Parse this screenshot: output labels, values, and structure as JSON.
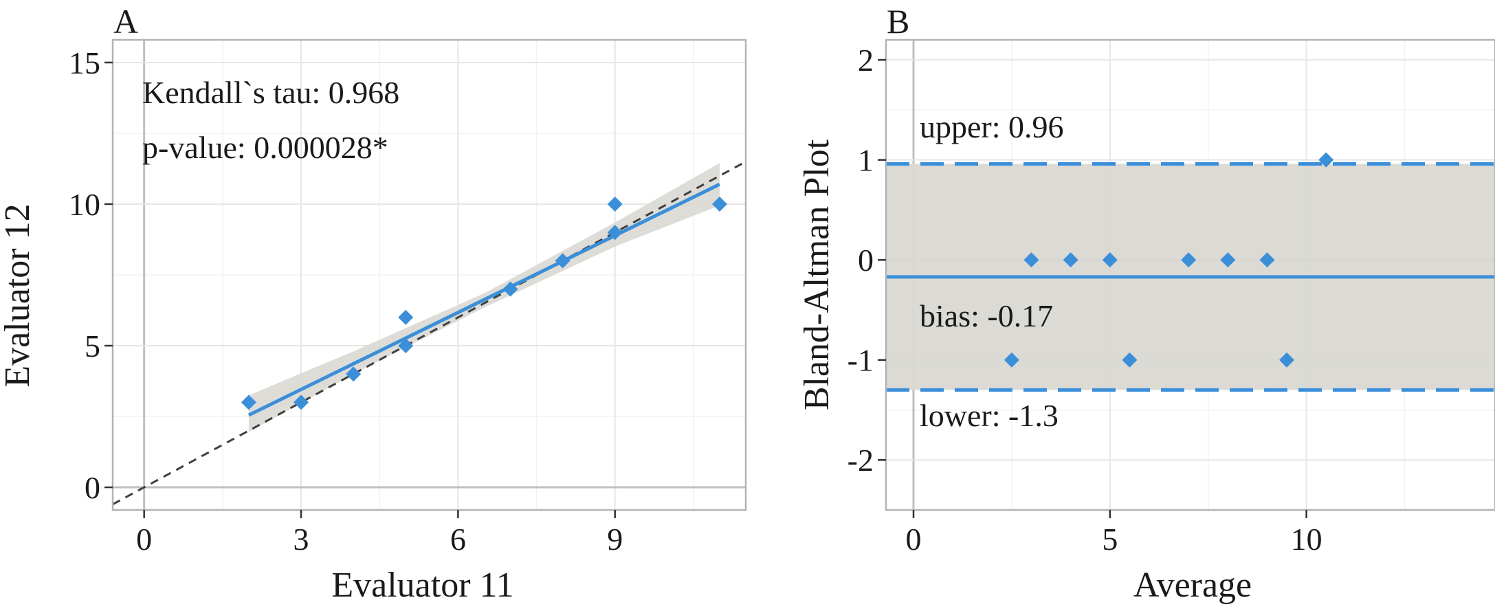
{
  "chart_data": [
    {
      "panel": "A",
      "type": "scatter",
      "xlabel": "Evaluator 11",
      "ylabel": "Evaluator 12",
      "xlim": [
        -0.6,
        11.5
      ],
      "ylim": [
        -0.8,
        15.8
      ],
      "xticks": [
        0,
        3,
        6,
        9
      ],
      "yticks": [
        0,
        5,
        10,
        15
      ],
      "grid": true,
      "points": [
        {
          "x": 2,
          "y": 3
        },
        {
          "x": 3,
          "y": 3
        },
        {
          "x": 4,
          "y": 4
        },
        {
          "x": 5,
          "y": 6
        },
        {
          "x": 5,
          "y": 5
        },
        {
          "x": 7,
          "y": 7
        },
        {
          "x": 8,
          "y": 8
        },
        {
          "x": 9,
          "y": 10
        },
        {
          "x": 9,
          "y": 9
        },
        {
          "x": 11,
          "y": 10
        }
      ],
      "regression": {
        "x_start": 2,
        "x_end": 11,
        "y_start": 2.55,
        "y_end": 10.7
      },
      "confidence_band": [
        {
          "x": 2,
          "lo": 1.95,
          "hi": 3.25
        },
        {
          "x": 4,
          "lo": 4.0,
          "hi": 4.8
        },
        {
          "x": 6.5,
          "lo": 6.35,
          "hi": 6.85
        },
        {
          "x": 9,
          "lo": 8.5,
          "hi": 9.35
        },
        {
          "x": 11,
          "lo": 9.95,
          "hi": 11.45
        }
      ],
      "identity_line": {
        "slope": 1,
        "intercept": 0
      },
      "annotations": [
        "Kendall`s tau: 0.968",
        "p-value: 0.000028*"
      ],
      "colors": {
        "points": "#3b8fd9",
        "regression": "#3b8fd9",
        "band": "#d9d8d3",
        "identity": "#404040"
      }
    },
    {
      "panel": "B",
      "type": "scatter",
      "xlabel": "Average",
      "ylabel": "Bland-Altman Plot",
      "xlim": [
        -0.7,
        14.8
      ],
      "ylim": [
        -2.5,
        2.2
      ],
      "xticks": [
        0,
        5,
        10
      ],
      "yticks": [
        -2,
        -1,
        0,
        1,
        2
      ],
      "grid": true,
      "points": [
        {
          "x": 2.5,
          "y": -1
        },
        {
          "x": 3,
          "y": 0
        },
        {
          "x": 4,
          "y": 0
        },
        {
          "x": 5,
          "y": 0
        },
        {
          "x": 5.5,
          "y": -1
        },
        {
          "x": 7,
          "y": 0
        },
        {
          "x": 8,
          "y": 0
        },
        {
          "x": 9,
          "y": 0
        },
        {
          "x": 9.5,
          "y": -1
        },
        {
          "x": 10.5,
          "y": 1
        }
      ],
      "limits": {
        "upper": 0.96,
        "bias": -0.17,
        "lower": -1.3
      },
      "annotations": {
        "upper": "upper:  0.96",
        "bias": "bias:  -0.17",
        "lower": "lower:  -1.3"
      },
      "colors": {
        "points": "#3b8fd9",
        "lines": "#3b8fd9",
        "band": "#d9d8d3"
      }
    }
  ],
  "panel_labels": [
    "A",
    "B"
  ]
}
